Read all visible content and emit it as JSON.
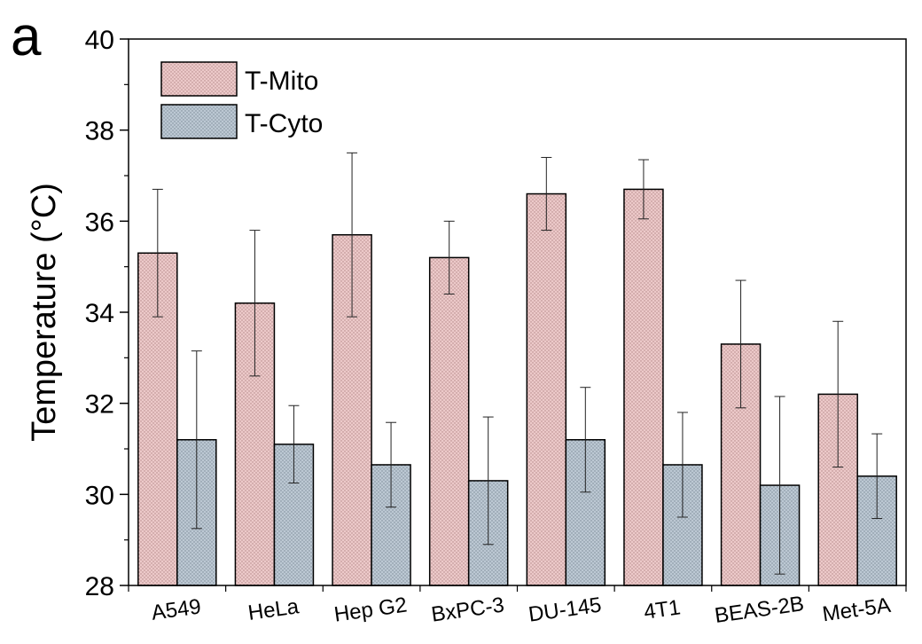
{
  "panel_label": "a",
  "chart_data": {
    "type": "bar",
    "ylabel": "Temperature (°C)",
    "ylim": [
      28,
      40
    ],
    "yticks": [
      28,
      30,
      32,
      34,
      36,
      38,
      40
    ],
    "categories": [
      "A549",
      "HeLa",
      "Hep G2",
      "BxPC-3",
      "DU-145",
      "4T1",
      "BEAS-2B",
      "Met-5A"
    ],
    "series": [
      {
        "name": "T-Mito",
        "color": "#e8c4c4",
        "values": [
          35.3,
          34.2,
          35.7,
          35.2,
          36.6,
          36.7,
          33.3,
          32.2
        ],
        "errors": [
          1.4,
          1.6,
          1.8,
          0.8,
          0.8,
          0.65,
          1.4,
          1.6
        ]
      },
      {
        "name": "T-Cyto",
        "color": "#b8c4cf",
        "values": [
          31.2,
          31.1,
          30.65,
          30.3,
          31.2,
          30.65,
          30.2,
          30.4
        ],
        "errors": [
          1.95,
          0.85,
          0.93,
          1.4,
          1.15,
          1.15,
          1.95,
          0.93
        ]
      }
    ],
    "legend_position": "top-left",
    "grid": false
  }
}
